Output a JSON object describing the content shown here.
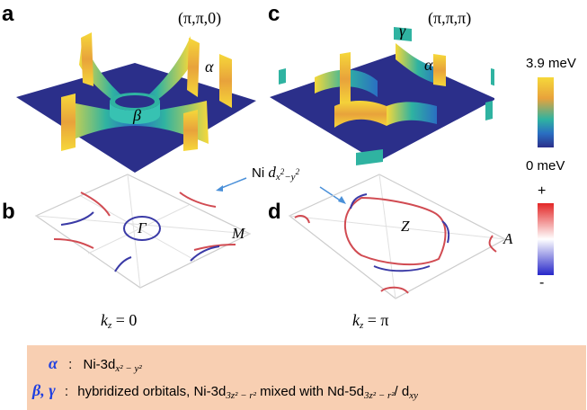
{
  "panels": {
    "a": "a",
    "b": "b",
    "c": "c",
    "d": "d"
  },
  "points": {
    "a": "(π,π,0)",
    "c": "(π,π,π)"
  },
  "band_labels": {
    "alpha": "α",
    "beta": "β",
    "gamma": "γ"
  },
  "bz_points": {
    "gamma": "Γ",
    "M": "M",
    "Z": "Z",
    "A": "A"
  },
  "kz_labels": {
    "left": "k",
    "left_sub": "z",
    "left_rest": " = 0",
    "right": "k",
    "right_sub": "z",
    "right_rest": " = π"
  },
  "annotation": {
    "prefix": "Ni ",
    "d": "d",
    "sub": "x",
    "sup1": "2",
    "dash": "−",
    "y": "y",
    "sup2": "2"
  },
  "colorbar_top": {
    "max": "3.9 meV",
    "min": "0 meV",
    "colors": [
      "#f6d83a",
      "#e8a23b",
      "#2fb3a1",
      "#2a6fc2",
      "#2b2f8a"
    ]
  },
  "colorbar_bottom": {
    "plus": "+",
    "minus": "-",
    "colors": [
      "#e32626",
      "#ffffff",
      "#2727c9"
    ]
  },
  "legend": {
    "line1": {
      "symbol": "α",
      "colon": ":",
      "text": "Ni-3d",
      "sub": "x² − y²"
    },
    "line2": {
      "symbol": "β, γ",
      "colon": ":",
      "text1": "hybridized orbitals, Ni-3d",
      "sub1": "3z² − r²",
      "text2": " mixed with Nd-5d",
      "sub2": "3z² − r²",
      "text3": "/ d",
      "sub3": "xy"
    },
    "background": "#f8cfb2",
    "symbol_color": "#1f3fe0"
  }
}
